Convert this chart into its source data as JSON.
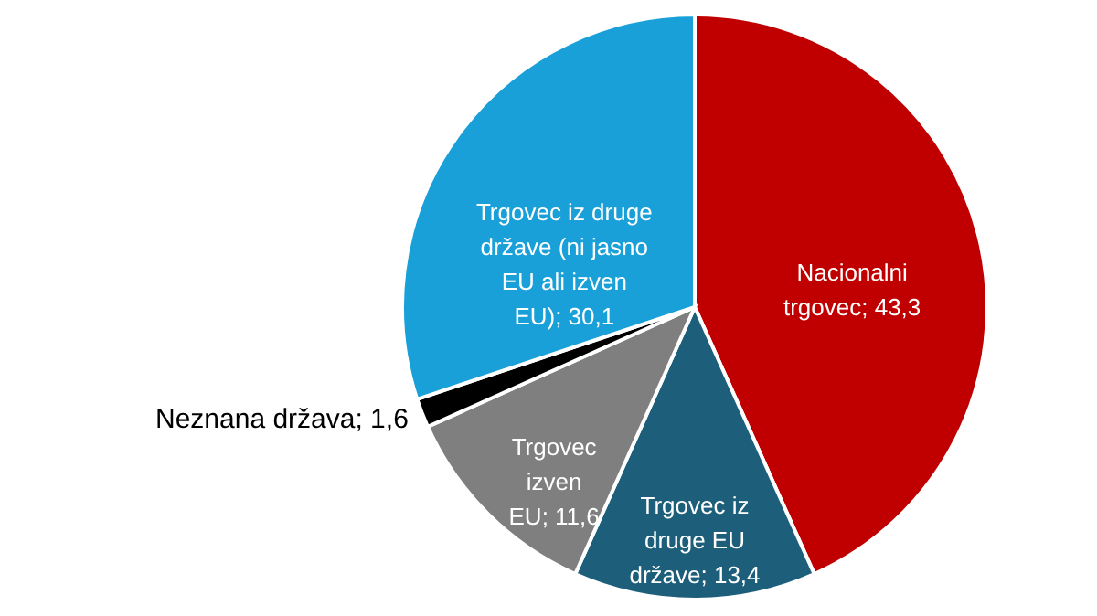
{
  "chart_data": {
    "type": "pie",
    "categories": [
      "Nacionalni trgovec",
      "Trgovec iz druge EU države",
      "Trgovec izven EU",
      "Neznana država",
      "Trgovec iz druge države (ni jasno EU ali izven EU)"
    ],
    "values": [
      43.3,
      13.4,
      11.6,
      1.6,
      30.1
    ],
    "value_labels": [
      "43,3",
      "13,4",
      "11,6",
      "1,6",
      "30,1"
    ],
    "colors": [
      "#c00000",
      "#1d5f7b",
      "#7f7f7f",
      "#000000",
      "#19a0d8"
    ]
  }
}
